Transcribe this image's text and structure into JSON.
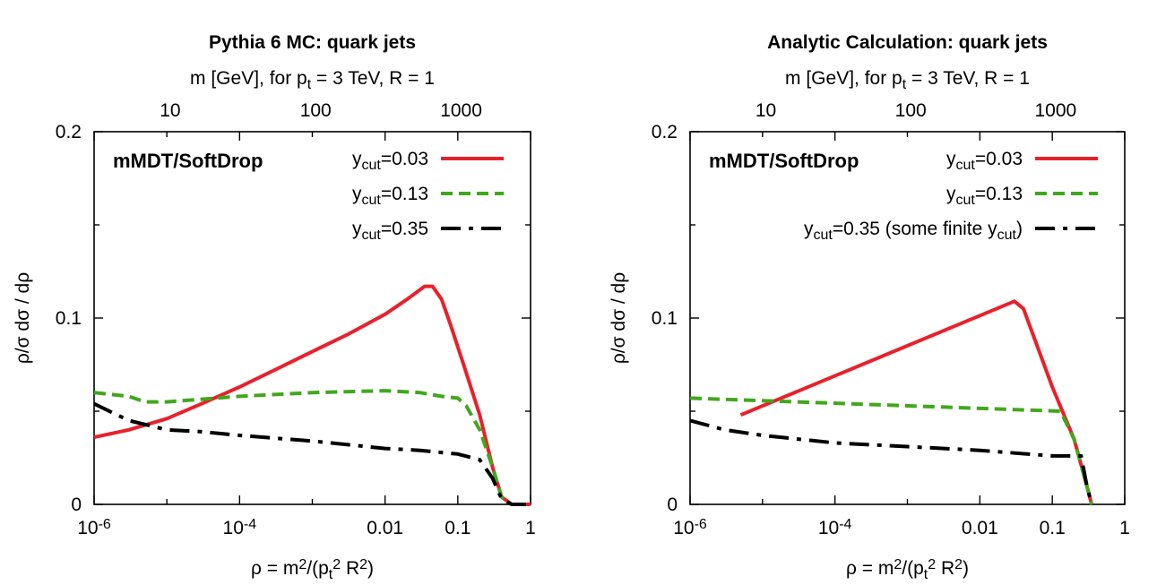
{
  "chart_data": [
    {
      "type": "line",
      "title": "Pythia 6 MC: quark jets",
      "xlabel": "ρ = m2/(pt2 R2)",
      "ylabel": "ρ/σ dσ / dρ",
      "top_axis_label": "m [GeV], for pt = 3 TeV, R = 1",
      "x_scale": "log",
      "xlim": [
        1e-06,
        1
      ],
      "ylim": [
        0,
        0.2
      ],
      "x_ticks": [
        {
          "v": 1e-06,
          "label": "10-6"
        },
        {
          "v": 0.0001,
          "label": "10-4"
        },
        {
          "v": 0.01,
          "label": "0.01"
        },
        {
          "v": 0.1,
          "label": "0.1"
        },
        {
          "v": 1,
          "label": "1"
        }
      ],
      "y_ticks": [
        {
          "v": 0,
          "label": "0"
        },
        {
          "v": 0.1,
          "label": "0.1"
        },
        {
          "v": 0.2,
          "label": "0.2"
        }
      ],
      "top_ticks": [
        {
          "m": 10,
          "label": "10"
        },
        {
          "m": 100,
          "label": "100"
        },
        {
          "m": 1000,
          "label": "1000"
        }
      ],
      "annotation": "mMDT/SoftDrop",
      "legend_position": "top-right",
      "series": [
        {
          "name": "ycut=0.03",
          "color": "#e8212b",
          "style": "solid",
          "points": [
            [
              1e-06,
              0.036
            ],
            [
              3e-06,
              0.04
            ],
            [
              1e-05,
              0.046
            ],
            [
              3e-05,
              0.054
            ],
            [
              0.0001,
              0.063
            ],
            [
              0.0003,
              0.072
            ],
            [
              0.001,
              0.082
            ],
            [
              0.003,
              0.091
            ],
            [
              0.01,
              0.102
            ],
            [
              0.02,
              0.11
            ],
            [
              0.035,
              0.117
            ],
            [
              0.045,
              0.117
            ],
            [
              0.06,
              0.11
            ],
            [
              0.08,
              0.096
            ],
            [
              0.12,
              0.075
            ],
            [
              0.2,
              0.048
            ],
            [
              0.3,
              0.02
            ],
            [
              0.4,
              0.004
            ],
            [
              0.55,
              0.0
            ],
            [
              1,
              0.0
            ]
          ]
        },
        {
          "name": "ycut=0.13",
          "color": "#41a71d",
          "style": "dashed",
          "points": [
            [
              1e-06,
              0.06
            ],
            [
              3e-06,
              0.058
            ],
            [
              5e-06,
              0.055
            ],
            [
              1e-05,
              0.055
            ],
            [
              0.0001,
              0.058
            ],
            [
              0.001,
              0.06
            ],
            [
              0.01,
              0.061
            ],
            [
              0.03,
              0.06
            ],
            [
              0.06,
              0.058
            ],
            [
              0.1,
              0.057
            ],
            [
              0.13,
              0.053
            ],
            [
              0.2,
              0.04
            ],
            [
              0.3,
              0.02
            ],
            [
              0.4,
              0.004
            ],
            [
              0.55,
              0.0
            ]
          ]
        },
        {
          "name": "ycut=0.35",
          "color": "#000000",
          "style": "dashdot",
          "points": [
            [
              1e-06,
              0.054
            ],
            [
              3e-06,
              0.045
            ],
            [
              1e-05,
              0.04
            ],
            [
              3e-05,
              0.039
            ],
            [
              0.0001,
              0.037
            ],
            [
              0.001,
              0.034
            ],
            [
              0.01,
              0.03
            ],
            [
              0.03,
              0.029
            ],
            [
              0.1,
              0.027
            ],
            [
              0.2,
              0.024
            ],
            [
              0.3,
              0.014
            ],
            [
              0.4,
              0.003
            ],
            [
              0.55,
              0.0
            ],
            [
              1,
              0.0
            ]
          ]
        }
      ]
    },
    {
      "type": "line",
      "title": "Analytic Calculation: quark jets",
      "xlabel": "ρ = m2/(pt2 R2)",
      "ylabel": "ρ/σ dσ / dρ",
      "top_axis_label": "m [GeV], for pt = 3 TeV, R = 1",
      "x_scale": "log",
      "xlim": [
        1e-06,
        1
      ],
      "ylim": [
        0,
        0.2
      ],
      "x_ticks": [
        {
          "v": 1e-06,
          "label": "10-6"
        },
        {
          "v": 0.0001,
          "label": "10-4"
        },
        {
          "v": 0.01,
          "label": "0.01"
        },
        {
          "v": 0.1,
          "label": "0.1"
        },
        {
          "v": 1,
          "label": "1"
        }
      ],
      "y_ticks": [
        {
          "v": 0,
          "label": "0"
        },
        {
          "v": 0.1,
          "label": "0.1"
        },
        {
          "v": 0.2,
          "label": "0.2"
        }
      ],
      "top_ticks": [
        {
          "m": 10,
          "label": "10"
        },
        {
          "m": 100,
          "label": "100"
        },
        {
          "m": 1000,
          "label": "1000"
        }
      ],
      "annotation": "mMDT/SoftDrop",
      "legend_position": "top-right",
      "series": [
        {
          "name": "ycut=0.03",
          "color": "#e8212b",
          "style": "solid",
          "points": [
            [
              5e-06,
              0.048
            ],
            [
              0.03,
              0.109
            ],
            [
              0.04,
              0.105
            ],
            [
              0.1,
              0.063
            ],
            [
              0.2,
              0.035
            ],
            [
              0.3,
              0.01
            ],
            [
              0.35,
              0.0
            ]
          ]
        },
        {
          "name": "ycut=0.13",
          "color": "#41a71d",
          "style": "dashed",
          "points": [
            [
              1e-06,
              0.057
            ],
            [
              0.13,
              0.05
            ],
            [
              0.2,
              0.035
            ],
            [
              0.3,
              0.01
            ],
            [
              0.35,
              0.0
            ]
          ]
        },
        {
          "name": "ycut=0.35 (some finite ycut)",
          "color": "#000000",
          "style": "dashdot",
          "points": [
            [
              1e-06,
              0.045
            ],
            [
              3e-06,
              0.04
            ],
            [
              1e-05,
              0.037
            ],
            [
              0.0001,
              0.033
            ],
            [
              0.001,
              0.031
            ],
            [
              0.01,
              0.029
            ],
            [
              0.1,
              0.026
            ],
            [
              0.25,
              0.026
            ],
            [
              0.3,
              0.01
            ],
            [
              0.35,
              0.0
            ]
          ]
        }
      ]
    }
  ]
}
